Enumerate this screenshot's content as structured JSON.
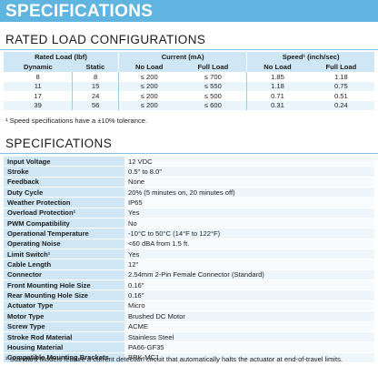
{
  "banner": "SPECIFICATIONS",
  "rated": {
    "title": "RATED LOAD CONFIGURATIONS",
    "group_headers": [
      "Rated Load (lbf)",
      "Current (mA)",
      "Speed¹ (inch/sec)"
    ],
    "sub_headers": [
      "Dynamic",
      "Static",
      "No Load",
      "Full Load",
      "No Load",
      "Full Load"
    ],
    "rows": [
      [
        "8",
        "8",
        "≤ 200",
        "≤ 700",
        "1.85",
        "1.18"
      ],
      [
        "11",
        "15",
        "≤ 200",
        "≤ 550",
        "1.18",
        "0.75"
      ],
      [
        "17",
        "24",
        "≤ 200",
        "≤ 500",
        "0.71",
        "0.51"
      ],
      [
        "39",
        "56",
        "≤ 200",
        "≤ 600",
        "0.31",
        "0.24"
      ]
    ],
    "note": "¹ Speed specifications have a ±10% tolerance."
  },
  "specs": {
    "title": "SPECIFICATIONS",
    "rows": [
      [
        "Input Voltage",
        "12 VDC"
      ],
      [
        "Stroke",
        "0.5\" to 8.0\""
      ],
      [
        "Feedback",
        "None"
      ],
      [
        "Duty Cycle",
        "20% (5 minutes on, 20 minutes off)"
      ],
      [
        "Weather Protection",
        "IP65"
      ],
      [
        "Overload Protection¹",
        "Yes"
      ],
      [
        "PWM Compatibility",
        "No"
      ],
      [
        "Operational Temperature",
        "-10°C to 50°C (14°F to 122°F)"
      ],
      [
        "Operating Noise",
        "<60 dBA from 1.5 ft."
      ],
      [
        "Limit Switch¹",
        "Yes"
      ],
      [
        "Cable Length",
        "12\""
      ],
      [
        "Connector",
        "2.54mm 2-Pin Female Connector (Standard)"
      ],
      [
        "Front Mounting Hole Size",
        "0.16\""
      ],
      [
        "Rear Mounting Hole Size",
        "0.16\""
      ],
      [
        "Actuator Type",
        "Micro"
      ],
      [
        "Motor Type",
        "Brushed DC Motor"
      ],
      [
        "Screw Type",
        "ACME"
      ],
      [
        "Stroke Rod Material",
        "Stainless Steel"
      ],
      [
        "Housing Material",
        "PA66-GF35"
      ],
      [
        "Compatible Mounting Brackets",
        "BRK-MC1"
      ]
    ],
    "note": "¹ Standard Models feature a current detection circuit that automatically halts the actuator at end-of-travel limits."
  }
}
